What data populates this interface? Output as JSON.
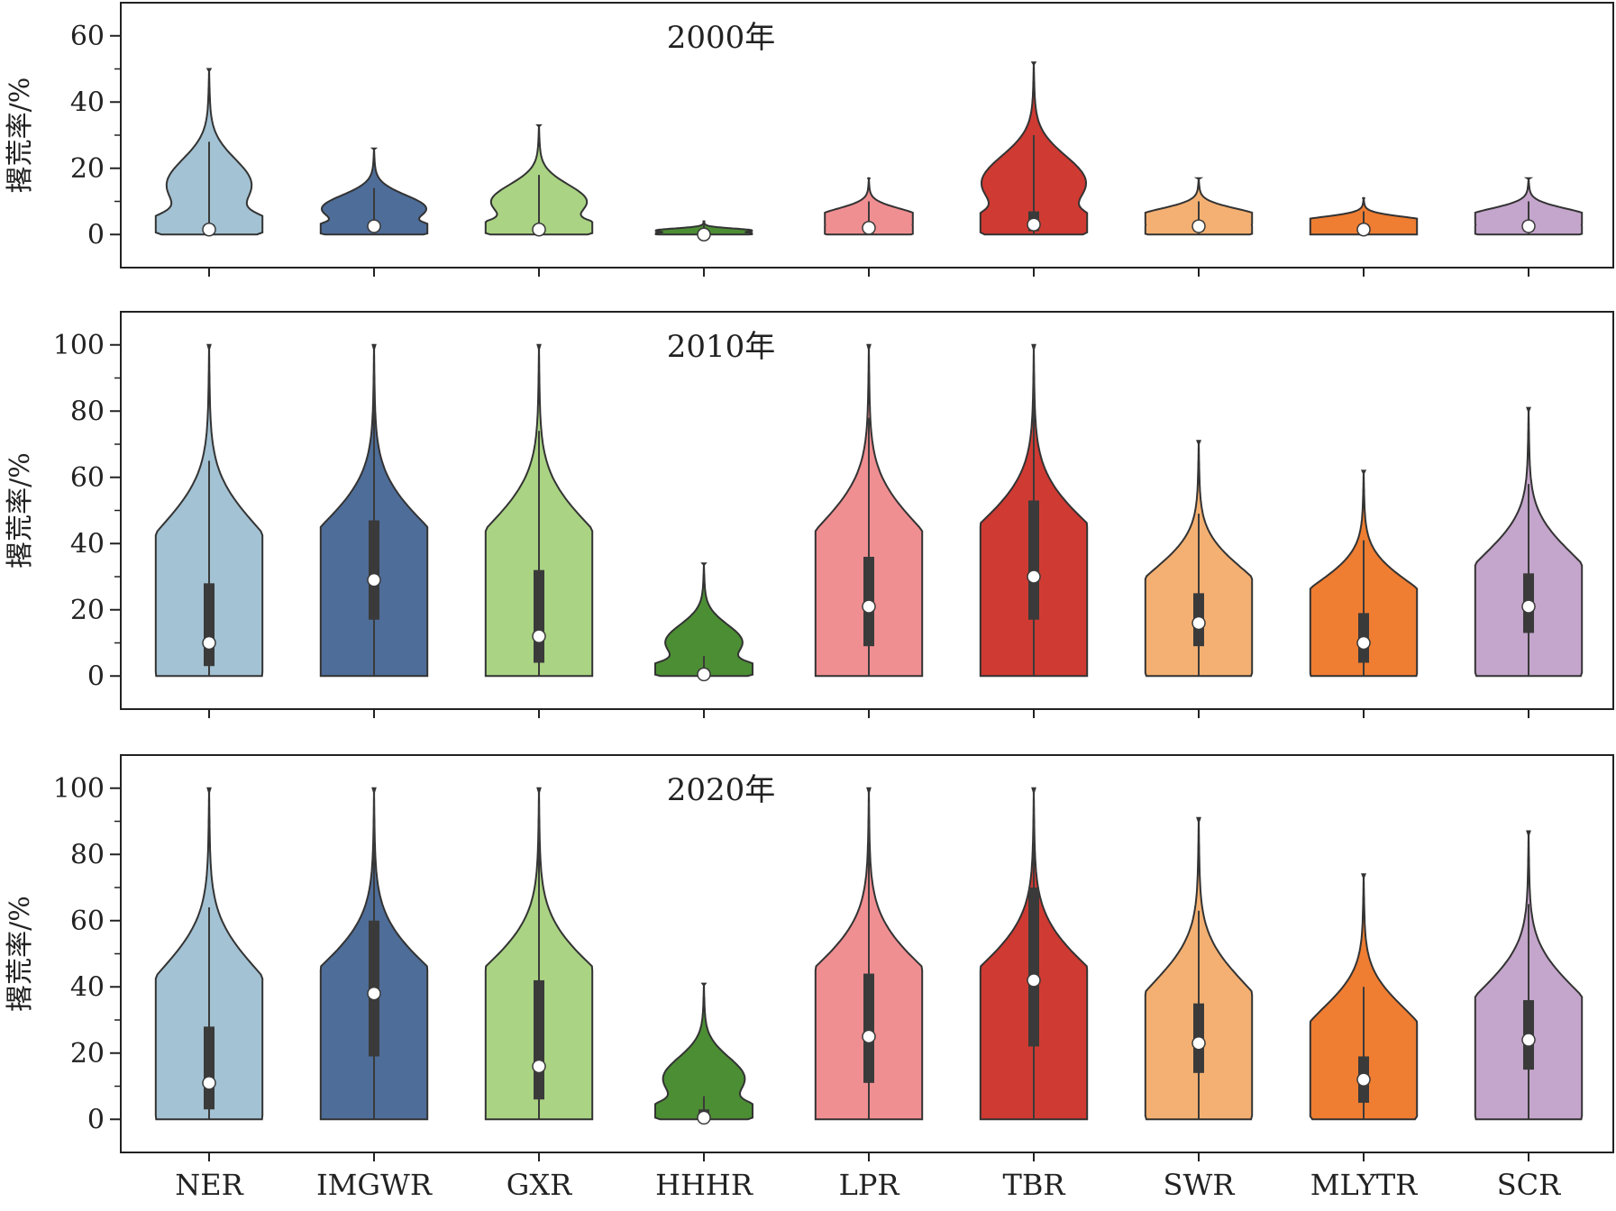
{
  "chart_data": {
    "type": "violin",
    "categories": [
      "NER",
      "IMGWR",
      "GXR",
      "HHHR",
      "LPR",
      "TBR",
      "SWR",
      "MLYTR",
      "SCR"
    ],
    "colors": [
      "#a3c2d3",
      "#4e6d99",
      "#aad383",
      "#4c8e34",
      "#f08f92",
      "#cf3a32",
      "#f4b072",
      "#ef7d32",
      "#c4a5cb"
    ],
    "ylabel": "撂荒率/%",
    "panels": [
      {
        "title": "2000年",
        "ylim": [
          -10,
          70
        ],
        "yticks": [
          0,
          20,
          40,
          60
        ],
        "series": [
          {
            "name": "NER",
            "max": 50,
            "q1": 0,
            "median": 1.5,
            "q3": 3,
            "whisker_high": 28,
            "width": 0.8
          },
          {
            "name": "IMGWR",
            "max": 26,
            "q1": 1,
            "median": 2.5,
            "q3": 4,
            "whisker_high": 14,
            "width": 0.8
          },
          {
            "name": "GXR",
            "max": 33,
            "q1": 0,
            "median": 1.5,
            "q3": 3,
            "whisker_high": 18,
            "width": 0.8
          },
          {
            "name": "HHHR",
            "max": 4,
            "q1": 0,
            "median": 0,
            "q3": 0.5,
            "whisker_high": 3,
            "width": 0.72
          },
          {
            "name": "LPR",
            "max": 17,
            "q1": 0.5,
            "median": 2,
            "q3": 3.5,
            "whisker_high": 10,
            "width": 0.66
          },
          {
            "name": "TBR",
            "max": 52,
            "q1": 1,
            "median": 3,
            "q3": 7,
            "whisker_high": 30,
            "width": 0.8
          },
          {
            "name": "SWR",
            "max": 17,
            "q1": 1,
            "median": 2.5,
            "q3": 4,
            "whisker_high": 10,
            "width": 0.8
          },
          {
            "name": "MLYTR",
            "max": 11,
            "q1": 0,
            "median": 1.5,
            "q3": 3,
            "whisker_high": 7,
            "width": 0.8
          },
          {
            "name": "SCR",
            "max": 17,
            "q1": 1,
            "median": 2.5,
            "q3": 4,
            "whisker_high": 10,
            "width": 0.8
          }
        ]
      },
      {
        "title": "2010年",
        "ylim": [
          -10,
          110
        ],
        "yticks": [
          0,
          20,
          40,
          60,
          80,
          100
        ],
        "series": [
          {
            "name": "NER",
            "max": 100,
            "q1": 3,
            "median": 10,
            "q3": 28,
            "whisker_high": 65,
            "width": 0.8
          },
          {
            "name": "IMGWR",
            "max": 100,
            "q1": 17,
            "median": 29,
            "q3": 47,
            "whisker_high": 92,
            "width": 0.8
          },
          {
            "name": "GXR",
            "max": 100,
            "q1": 4,
            "median": 12,
            "q3": 32,
            "whisker_high": 74,
            "width": 0.8
          },
          {
            "name": "HHHR",
            "max": 34,
            "q1": 0,
            "median": 0.5,
            "q3": 2,
            "whisker_high": 6,
            "width": 0.73
          },
          {
            "name": "LPR",
            "max": 100,
            "q1": 9,
            "median": 21,
            "q3": 36,
            "whisker_high": 78,
            "width": 0.8
          },
          {
            "name": "TBR",
            "max": 100,
            "q1": 17,
            "median": 30,
            "q3": 53,
            "whisker_high": 100,
            "width": 0.8
          },
          {
            "name": "SWR",
            "max": 71,
            "q1": 9,
            "median": 16,
            "q3": 25,
            "whisker_high": 49,
            "width": 0.8
          },
          {
            "name": "MLYTR",
            "max": 62,
            "q1": 4,
            "median": 10,
            "q3": 19,
            "whisker_high": 41,
            "width": 0.8
          },
          {
            "name": "SCR",
            "max": 81,
            "q1": 13,
            "median": 21,
            "q3": 31,
            "whisker_high": 58,
            "width": 0.8
          }
        ]
      },
      {
        "title": "2020年",
        "ylim": [
          -10,
          110
        ],
        "yticks": [
          0,
          20,
          40,
          60,
          80,
          100
        ],
        "series": [
          {
            "name": "NER",
            "max": 100,
            "q1": 3,
            "median": 11,
            "q3": 28,
            "whisker_high": 64,
            "width": 0.8
          },
          {
            "name": "IMGWR",
            "max": 100,
            "q1": 19,
            "median": 38,
            "q3": 60,
            "whisker_high": 100,
            "width": 0.8
          },
          {
            "name": "GXR",
            "max": 100,
            "q1": 6,
            "median": 16,
            "q3": 42,
            "whisker_high": 95,
            "width": 0.8
          },
          {
            "name": "HHHR",
            "max": 41,
            "q1": 0,
            "median": 0.5,
            "q3": 3,
            "whisker_high": 7,
            "width": 0.73
          },
          {
            "name": "LPR",
            "max": 100,
            "q1": 11,
            "median": 25,
            "q3": 44,
            "whisker_high": 96,
            "width": 0.8
          },
          {
            "name": "TBR",
            "max": 100,
            "q1": 22,
            "median": 42,
            "q3": 70,
            "whisker_high": 100,
            "width": 0.8
          },
          {
            "name": "SWR",
            "max": 91,
            "q1": 14,
            "median": 23,
            "q3": 35,
            "whisker_high": 63,
            "width": 0.8
          },
          {
            "name": "MLYTR",
            "max": 74,
            "q1": 5,
            "median": 12,
            "q3": 19,
            "whisker_high": 40,
            "width": 0.8
          },
          {
            "name": "SCR",
            "max": 87,
            "q1": 15,
            "median": 24,
            "q3": 36,
            "whisker_high": 65,
            "width": 0.8
          }
        ]
      }
    ]
  }
}
